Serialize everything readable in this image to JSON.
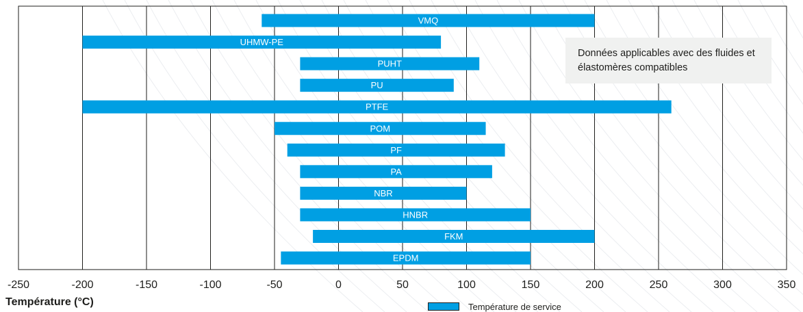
{
  "chart_data": {
    "type": "bar",
    "orientation": "horizontal",
    "xlabel": "Température (°C)",
    "xlim": [
      -250,
      350
    ],
    "xticks": [
      -250,
      -200,
      -150,
      -100,
      -50,
      0,
      50,
      100,
      150,
      200,
      250,
      300,
      350
    ],
    "grid": true,
    "bar_color": "#009fe3",
    "categories": [
      "VMQ",
      "UHMW-PE",
      "PUHT",
      "PU",
      "PTFE",
      "POM",
      "PF",
      "PA",
      "NBR",
      "HNBR",
      "FKM",
      "EPDM"
    ],
    "series": [
      {
        "name": "Température de service",
        "ranges": [
          [
            -60,
            200
          ],
          [
            -200,
            80
          ],
          [
            -30,
            110
          ],
          [
            -30,
            90
          ],
          [
            -200,
            260
          ],
          [
            -50,
            115
          ],
          [
            -40,
            130
          ],
          [
            -30,
            120
          ],
          [
            -30,
            100
          ],
          [
            -30,
            150
          ],
          [
            -20,
            200
          ],
          [
            -45,
            150
          ]
        ]
      }
    ],
    "legend": {
      "position": "bottom-right"
    },
    "annotation": "Données applicables avec des fluides et élastomères compatibles"
  }
}
